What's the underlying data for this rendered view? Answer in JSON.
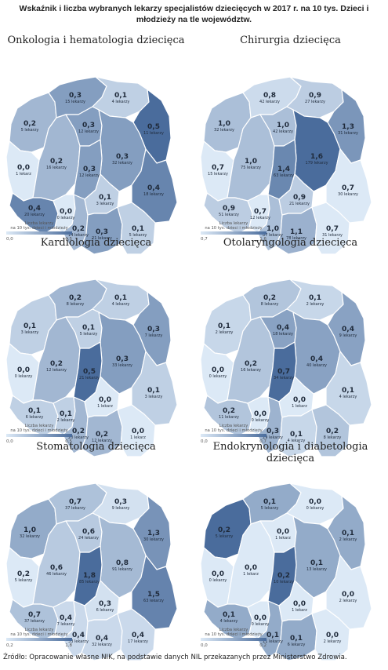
{
  "heading": "Wskaźnik i liczba wybranych lekarzy specjalistów dziecięcych w 2017 r. na 10 tys. Dzieci i młodzieży na tle województw.",
  "source": "Źródło: Opracowanie własne NIK, na podstawie danych NIL przekazanych przez Ministerstwo Zdrowia.",
  "legend_title_1": "Liczba lekarzy",
  "legend_title_2": "na 10 tys. dzieci i młodzieży",
  "color_light": "#dce9f6",
  "color_dark": "#4a6c9c",
  "border_color": "#ffffff",
  "region_order": [
    "zachodniopomorskie",
    "pomorskie",
    "warminsko-mazurskie",
    "lubuskie",
    "wielkopolskie",
    "kujawsko-pomorskie",
    "podlaskie",
    "mazowieckie",
    "lodzkie",
    "dolnoslaskie",
    "opolskie",
    "slaskie",
    "swietokrzyskie",
    "lubelskie",
    "malopolskie",
    "podkarpackie"
  ],
  "maps": [
    {
      "title": "Onkologia i hematologia dziecięca",
      "min": "0,0",
      "max": "0,5",
      "minNum": 0,
      "maxNum": 0.5,
      "regions": {
        "zachodniopomorskie": {
          "value": "0,2",
          "count": "5 lekarzy",
          "v": 0.2
        },
        "pomorskie": {
          "value": "0,3",
          "count": "15 lekarzy",
          "v": 0.3
        },
        "warminsko-mazurskie": {
          "value": "0,1",
          "count": "4 lekarzy",
          "v": 0.1
        },
        "lubuskie": {
          "value": "0,0",
          "count": "1 lekarz",
          "v": 0.0
        },
        "wielkopolskie": {
          "value": "0,2",
          "count": "16 lekarzy",
          "v": 0.2
        },
        "kujawsko-pomorskie": {
          "value": "0,3",
          "count": "12 lekarzy",
          "v": 0.3
        },
        "podlaskie": {
          "value": "0,5",
          "count": "11 lekarzy",
          "v": 0.5
        },
        "mazowieckie": {
          "value": "0,3",
          "count": "32 lekarzy",
          "v": 0.3
        },
        "lodzkie": {
          "value": "0,3",
          "count": "12 lekarzy",
          "v": 0.3
        },
        "dolnoslaskie": {
          "value": "0,4",
          "count": "20 lekarzy",
          "v": 0.4
        },
        "opolskie": {
          "value": "0,0",
          "count": "0 lekarzy",
          "v": 0.0
        },
        "slaskie": {
          "value": "0,2",
          "count": "14 lekarzy",
          "v": 0.2
        },
        "swietokrzyskie": {
          "value": "0,1",
          "count": "3 lekarzy",
          "v": 0.1
        },
        "lubelskie": {
          "value": "0,4",
          "count": "18 lekarzy",
          "v": 0.4
        },
        "malopolskie": {
          "value": "0,3",
          "count": "21 lekarzy",
          "v": 0.3
        },
        "podkarpackie": {
          "value": "0,1",
          "count": "5 lekarzy",
          "v": 0.1
        }
      }
    },
    {
      "title": "Chirurgia dziecięca",
      "min": "0,7",
      "max": "1,6",
      "minNum": 0.7,
      "maxNum": 1.6,
      "regions": {
        "zachodniopomorskie": {
          "value": "1,0",
          "count": "32 lekarzy",
          "v": 1.0
        },
        "pomorskie": {
          "value": "0,8",
          "count": "42 lekarzy",
          "v": 0.8
        },
        "warminsko-mazurskie": {
          "value": "0,9",
          "count": "27 lekarzy",
          "v": 0.9
        },
        "lubuskie": {
          "value": "0,7",
          "count": "15 lekarzy",
          "v": 0.7
        },
        "wielkopolskie": {
          "value": "1,0",
          "count": "75 lekarzy",
          "v": 1.0
        },
        "kujawsko-pomorskie": {
          "value": "1,0",
          "count": "42 lekarzy",
          "v": 1.0
        },
        "podlaskie": {
          "value": "1,3",
          "count": "31 lekarzy",
          "v": 1.3
        },
        "mazowieckie": {
          "value": "1,6",
          "count": "179 lekarzy",
          "v": 1.6
        },
        "lodzkie": {
          "value": "1,4",
          "count": "63 lekarzy",
          "v": 1.4
        },
        "dolnoslaskie": {
          "value": "0,9",
          "count": "51 lekarzy",
          "v": 0.9
        },
        "opolskie": {
          "value": "0,7",
          "count": "12 lekarzy",
          "v": 0.7
        },
        "slaskie": {
          "value": "1,0",
          "count": "87 lekarzy",
          "v": 1.0
        },
        "swietokrzyskie": {
          "value": "0,9",
          "count": "21 lekarzy",
          "v": 0.9
        },
        "lubelskie": {
          "value": "0,7",
          "count": "30 lekarzy",
          "v": 0.7
        },
        "malopolskie": {
          "value": "1,1",
          "count": "78 lekarzy",
          "v": 1.1
        },
        "podkarpackie": {
          "value": "0,7",
          "count": "31 lekarzy",
          "v": 0.7
        }
      }
    },
    {
      "title": "Kardiologia dziecięca",
      "min": "0,0",
      "max": "0,5",
      "minNum": 0,
      "maxNum": 0.5,
      "regions": {
        "zachodniopomorskie": {
          "value": "0,1",
          "count": "3 lekarzy",
          "v": 0.1
        },
        "pomorskie": {
          "value": "0,2",
          "count": "8 lekarzy",
          "v": 0.2
        },
        "warminsko-mazurskie": {
          "value": "0,1",
          "count": "4 lekarzy",
          "v": 0.1
        },
        "lubuskie": {
          "value": "0,0",
          "count": "0 lekarzy",
          "v": 0.0
        },
        "wielkopolskie": {
          "value": "0,2",
          "count": "12 lekarzy",
          "v": 0.2
        },
        "kujawsko-pomorskie": {
          "value": "0,1",
          "count": "5 lekarzy",
          "v": 0.1
        },
        "podlaskie": {
          "value": "0,3",
          "count": "7 lekarzy",
          "v": 0.3
        },
        "mazowieckie": {
          "value": "0,3",
          "count": "33 lekarzy",
          "v": 0.3
        },
        "lodzkie": {
          "value": "0,5",
          "count": "21 lekarzy",
          "v": 0.5
        },
        "dolnoslaskie": {
          "value": "0,1",
          "count": "6 lekarzy",
          "v": 0.1
        },
        "opolskie": {
          "value": "0,1",
          "count": "2 lekarzy",
          "v": 0.1
        },
        "slaskie": {
          "value": "0,2",
          "count": "20 lekarzy",
          "v": 0.2
        },
        "swietokrzyskie": {
          "value": "0,0",
          "count": "1 lekarz",
          "v": 0.0
        },
        "lubelskie": {
          "value": "0,1",
          "count": "3 lekarzy",
          "v": 0.1
        },
        "malopolskie": {
          "value": "0,2",
          "count": "12 lekarzy",
          "v": 0.2
        },
        "podkarpackie": {
          "value": "0,0",
          "count": "1 lekarz",
          "v": 0.0
        }
      }
    },
    {
      "title": "Otolaryngologia dziecięca",
      "min": "0,0",
      "max": "0,7",
      "minNum": 0,
      "maxNum": 0.7,
      "regions": {
        "zachodniopomorskie": {
          "value": "0,1",
          "count": "2 lekarzy",
          "v": 0.1
        },
        "pomorskie": {
          "value": "0,2",
          "count": "8 lekarzy",
          "v": 0.2
        },
        "warminsko-mazurskie": {
          "value": "0,1",
          "count": "2 lekarzy",
          "v": 0.1
        },
        "lubuskie": {
          "value": "0,0",
          "count": "0 lekarzy",
          "v": 0.0
        },
        "wielkopolskie": {
          "value": "0,2",
          "count": "16 lekarzy",
          "v": 0.2
        },
        "kujawsko-pomorskie": {
          "value": "0,4",
          "count": "18 lekarzy",
          "v": 0.4
        },
        "podlaskie": {
          "value": "0,4",
          "count": "9 lekarzy",
          "v": 0.4
        },
        "mazowieckie": {
          "value": "0,4",
          "count": "40 lekarzy",
          "v": 0.4
        },
        "lodzkie": {
          "value": "0,7",
          "count": "34 lekarzy",
          "v": 0.7
        },
        "dolnoslaskie": {
          "value": "0,2",
          "count": "11 lekarzy",
          "v": 0.2
        },
        "opolskie": {
          "value": "0,0",
          "count": "0 lekarzy",
          "v": 0.0
        },
        "slaskie": {
          "value": "0,3",
          "count": "29 lekarzy",
          "v": 0.3
        },
        "swietokrzyskie": {
          "value": "0,0",
          "count": "1 lekarz",
          "v": 0.0
        },
        "lubelskie": {
          "value": "0,1",
          "count": "4 lekarzy",
          "v": 0.1
        },
        "malopolskie": {
          "value": "0,1",
          "count": "4 lekarzy",
          "v": 0.1
        },
        "podkarpackie": {
          "value": "0,2",
          "count": "8 lekarzy",
          "v": 0.2
        }
      }
    },
    {
      "title": "Stomatologia dziecięca",
      "min": "0,2",
      "max": "1,8",
      "minNum": 0.2,
      "maxNum": 1.8,
      "regions": {
        "zachodniopomorskie": {
          "value": "1,0",
          "count": "32 lekarzy",
          "v": 1.0
        },
        "pomorskie": {
          "value": "0,7",
          "count": "37 lekarzy",
          "v": 0.7
        },
        "warminsko-mazurskie": {
          "value": "0,3",
          "count": "9 lekarzy",
          "v": 0.3
        },
        "lubuskie": {
          "value": "0,2",
          "count": "5 lekarzy",
          "v": 0.2
        },
        "wielkopolskie": {
          "value": "0,6",
          "count": "46 lekarzy",
          "v": 0.6
        },
        "kujawsko-pomorskie": {
          "value": "0,6",
          "count": "24 lekarzy",
          "v": 0.6
        },
        "podlaskie": {
          "value": "1,3",
          "count": "30 lekarzy",
          "v": 1.3
        },
        "mazowieckie": {
          "value": "0,8",
          "count": "91 lekarzy",
          "v": 0.8
        },
        "lodzkie": {
          "value": "1,8",
          "count": "85 lekarzy",
          "v": 1.8
        },
        "dolnoslaskie": {
          "value": "0,7",
          "count": "37 lekarzy",
          "v": 0.7
        },
        "opolskie": {
          "value": "0,4",
          "count": "7 lekarzy",
          "v": 0.4
        },
        "slaskie": {
          "value": "0,4",
          "count": "33 lekarzy",
          "v": 0.4
        },
        "swietokrzyskie": {
          "value": "0,3",
          "count": "6 lekarzy",
          "v": 0.3
        },
        "lubelskie": {
          "value": "1,5",
          "count": "63 lekarzy",
          "v": 1.5
        },
        "malopolskie": {
          "value": "0,4",
          "count": "32 lekarzy",
          "v": 0.4
        },
        "podkarpackie": {
          "value": "0,4",
          "count": "17 lekarzy",
          "v": 0.4
        }
      }
    },
    {
      "title": "Endokrynologia i diabetologia dziecięca",
      "min": "0,0",
      "max": "0,2",
      "minNum": 0,
      "maxNum": 0.2,
      "regions": {
        "zachodniopomorskie": {
          "value": "0,2",
          "count": "5 lekarzy",
          "v": 0.2
        },
        "pomorskie": {
          "value": "0,1",
          "count": "5 lekarzy",
          "v": 0.1
        },
        "warminsko-mazurskie": {
          "value": "0,0",
          "count": "0 lekarzy",
          "v": 0.0
        },
        "lubuskie": {
          "value": "0,0",
          "count": "0 lekarzy",
          "v": 0.0
        },
        "wielkopolskie": {
          "value": "0,0",
          "count": "1 lekarz",
          "v": 0.0
        },
        "kujawsko-pomorskie": {
          "value": "0,0",
          "count": "1 lekarz",
          "v": 0.0
        },
        "podlaskie": {
          "value": "0,1",
          "count": "2 lekarzy",
          "v": 0.1
        },
        "mazowieckie": {
          "value": "0,1",
          "count": "13 lekarzy",
          "v": 0.1
        },
        "lodzkie": {
          "value": "0,2",
          "count": "10 lekarzy",
          "v": 0.2
        },
        "dolnoslaskie": {
          "value": "0,1",
          "count": "4 lekarzy",
          "v": 0.1
        },
        "opolskie": {
          "value": "0,0",
          "count": "0 lekarzy",
          "v": 0.0
        },
        "slaskie": {
          "value": "0,1",
          "count": "11 lekarzy",
          "v": 0.1
        },
        "swietokrzyskie": {
          "value": "0,0",
          "count": "1 lekarz",
          "v": 0.0
        },
        "lubelskie": {
          "value": "0,0",
          "count": "2 lekarzy",
          "v": 0.0
        },
        "malopolskie": {
          "value": "0,1",
          "count": "6 lekarzy",
          "v": 0.1
        },
        "podkarpackie": {
          "value": "0,0",
          "count": "2 lekarzy",
          "v": 0.0
        }
      }
    }
  ]
}
